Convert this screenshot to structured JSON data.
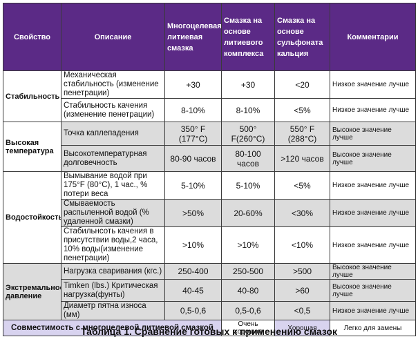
{
  "headers": {
    "property": "Свойство",
    "description": "Описание",
    "lithium": "Многоцелевая литиевая смазка",
    "lithium_complex": "Смазка на основе литиевого комплекса",
    "calcium_sulfonate": "Смазка на основе сульфоната кальция",
    "comments": "Комментарии"
  },
  "groups": {
    "stability": "Стабильность",
    "high_temp": "Высокая температура",
    "water": "Водостойкость",
    "extreme": "Экстремальное давление"
  },
  "rows": [
    {
      "desc": "Механическая стабильность (изменение пенетрации)",
      "v1": "+30",
      "v2": "+30",
      "v3": "<20",
      "comment": "Низкое значение лучше"
    },
    {
      "desc": "Стабильность качения (изменение пенетрации)",
      "v1": "8-10%",
      "v2": "8-10%",
      "v3": "<5%",
      "comment": "Низкое значение лучше"
    },
    {
      "desc": "Точка каплепадения",
      "v1": "350° F (177°C)",
      "v2": "500° F(260°C)",
      "v3": "550° F (288°C)",
      "comment": "Высокое значение лучше"
    },
    {
      "desc": "Высокотемпературная долговечность",
      "v1": "80-90 часов",
      "v2": "80-100 часов",
      "v3": ">120 часов",
      "comment": "Высокое значение лучше"
    },
    {
      "desc": "Вымывание водой при 175°F (80°C), 1 час., % потери веса",
      "v1": "5-10%",
      "v2": "5-10%",
      "v3": "<5%",
      "comment": "Низкое значение лучше"
    },
    {
      "desc": "Смываемость распыленной водой (% удаленной смазки)",
      "v1": ">50%",
      "v2": "20-60%",
      "v3": "<30%",
      "comment": "Низкое значение лучше"
    },
    {
      "desc": "Стабильнсоть качения в присутствии воды,2 часа, 10% воды(изменение пенетрации)",
      "v1": ">10%",
      "v2": ">10%",
      "v3": "<10%",
      "comment": "Низкое значение лучше"
    },
    {
      "desc": "Нагрузка сваривания (кгс.)",
      "v1": "250-400",
      "v2": "250-500",
      "v3": ">500",
      "comment": "Высокое значение лучше"
    },
    {
      "desc": "Timken (lbs.) Критическая нагрузка(фунты)",
      "v1": "40-45",
      "v2": "40-80",
      "v3": ">60",
      "comment": "Высокое значение лучше"
    },
    {
      "desc": "Диаметр пятна износа (мм)",
      "v1": "0,5-0,6",
      "v2": "0,5-0,6",
      "v3": "<0,5",
      "comment": "Низкое значение лучше"
    }
  ],
  "footer": {
    "label": "Совместимость с многоцелевой литиевой смазкой",
    "v2": "Очень хорошая",
    "v3": "Хорошая",
    "comment": "Легко для замены"
  },
  "caption": "Таблица 1.   Сравнение готовых к применению смазок",
  "colors": {
    "header_bg": "#5b2a86",
    "shade_row": "#dcdcdc",
    "footer_bg": "#d8d3ef"
  }
}
